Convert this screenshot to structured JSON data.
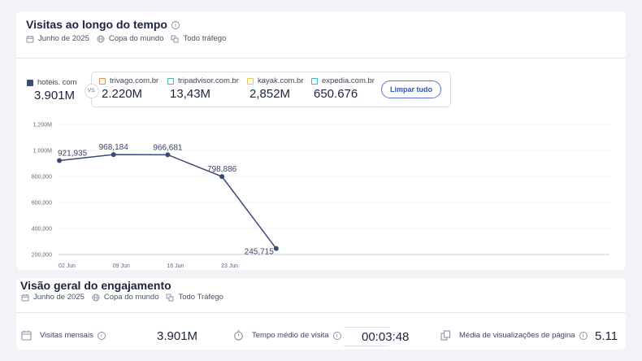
{
  "visits_card": {
    "title": "Visitas ao longo do tempo",
    "filters": {
      "date": "Junho de 2025",
      "region": "Copa do mundo",
      "traffic": "Todo tráfego"
    }
  },
  "competitors": {
    "main": {
      "name": "hoteis. com",
      "value": "3.901M",
      "color": "#3a4a79"
    },
    "vs_label": "VS.",
    "others": [
      {
        "name": "trivago.com.br",
        "value": "2.220M",
        "color": "#e8914b"
      },
      {
        "name": "tripadvisor.com.br",
        "value": "13,43M",
        "color": "#3fbfa6"
      },
      {
        "name": "kayak.com.br",
        "value": "2,852M",
        "color": "#f0c53d"
      },
      {
        "name": "expedia.com.br",
        "value": "650.676",
        "color": "#35b9cf"
      }
    ],
    "clear_button": "Limpar tudo"
  },
  "chart_data": {
    "type": "line",
    "x": [
      "2025-06-01",
      "2025-06-08",
      "2025-06-15",
      "2025-06-22",
      "2025-06-29"
    ],
    "series": [
      {
        "values": [
          921935,
          968184,
          966681,
          798886,
          245715
        ]
      }
    ],
    "data_labels": [
      "921,935",
      "968,184",
      "966,681",
      "798,886",
      "245,715"
    ],
    "y_ticks": [
      "200,000",
      "400,000",
      "600,000",
      "800,000",
      "1.000M",
      "1.200M"
    ],
    "x_ticks": [
      "02 Jun",
      "09 Jun",
      "16 Jun",
      "23 Jun"
    ],
    "ylim": [
      200000,
      1200000
    ],
    "grid": true,
    "line_color": "#3a4a79"
  },
  "engagement_card": {
    "title": "Visão geral do engajamento",
    "filters": {
      "date": "Junho de 2025",
      "region": "Copa do mundo",
      "traffic": "Todo Tráfego"
    },
    "metrics": [
      {
        "label": "Visitas mensais",
        "value": "3.901M",
        "icon": "calendar-icon"
      },
      {
        "label": "Tempo médio de visita",
        "value": "00:03:48",
        "icon": "stopwatch-icon"
      },
      {
        "label": "Média de visualizações de página",
        "value": "5.11",
        "icon": "pages-icon"
      }
    ]
  }
}
